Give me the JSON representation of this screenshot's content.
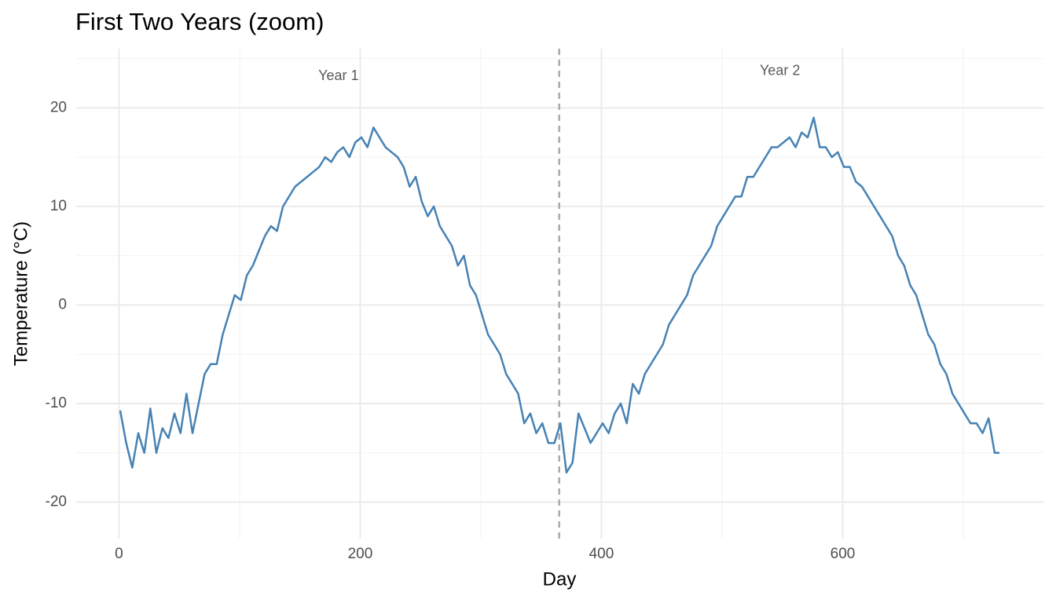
{
  "chart_data": {
    "type": "line",
    "title": "First Two Years (zoom)",
    "x_label": "Day",
    "y_label": "Temperature (°C)",
    "color": "#4682b4",
    "x": [
      1,
      6,
      11,
      16,
      21,
      26,
      31,
      36,
      41,
      46,
      51,
      56,
      61,
      66,
      71,
      76,
      81,
      86,
      91,
      96,
      101,
      106,
      111,
      116,
      121,
      126,
      131,
      136,
      141,
      146,
      151,
      156,
      161,
      166,
      171,
      176,
      181,
      186,
      191,
      196,
      201,
      206,
      211,
      216,
      221,
      226,
      231,
      236,
      241,
      246,
      251,
      256,
      261,
      266,
      271,
      276,
      281,
      286,
      291,
      296,
      301,
      306,
      311,
      316,
      321,
      326,
      331,
      336,
      341,
      346,
      351,
      356,
      361,
      366,
      371,
      376,
      381,
      386,
      391,
      396,
      401,
      406,
      411,
      416,
      421,
      426,
      431,
      436,
      441,
      446,
      451,
      456,
      461,
      466,
      471,
      476,
      481,
      486,
      491,
      496,
      501,
      506,
      511,
      516,
      521,
      526,
      531,
      536,
      541,
      546,
      551,
      556,
      561,
      566,
      571,
      576,
      581,
      586,
      591,
      596,
      601,
      606,
      611,
      616,
      621,
      626,
      631,
      636,
      641,
      646,
      651,
      656,
      661,
      666,
      671,
      676,
      681,
      686,
      691,
      696,
      701,
      706,
      711,
      716,
      721,
      726,
      730
    ],
    "values": [
      -10.7,
      -14,
      -16.5,
      -13,
      -15,
      -10.5,
      -15,
      -12.5,
      -13.5,
      -11,
      -13,
      -9,
      -13,
      -10,
      -7,
      -6,
      -6,
      -3,
      -1,
      1,
      0.5,
      3,
      4,
      5.5,
      7,
      8,
      7.5,
      10,
      11,
      12,
      12.5,
      13,
      13.5,
      14,
      15,
      14.5,
      15.5,
      16,
      15,
      16.5,
      17,
      16,
      18,
      17,
      16,
      15.5,
      15,
      14,
      12,
      13,
      10.5,
      9,
      10,
      8,
      7,
      6,
      4,
      5,
      2,
      1,
      -1,
      -3,
      -4,
      -5,
      -7,
      -8,
      -9,
      -12,
      -11,
      -13,
      -12,
      -14,
      -14,
      -12,
      -17,
      -16,
      -11,
      -12.5,
      -14,
      -13,
      -12,
      -13,
      -11,
      -10,
      -12,
      -8,
      -9,
      -7,
      -6,
      -5,
      -4,
      -2,
      -1,
      0,
      1,
      3,
      4,
      5,
      6,
      8,
      9,
      10,
      11,
      11,
      13,
      13,
      14,
      15,
      16,
      16,
      16.5,
      17,
      16,
      17.5,
      17,
      19,
      16,
      16,
      15,
      15.5,
      14,
      14,
      12.5,
      12,
      11,
      10,
      9,
      8,
      7,
      5,
      4,
      2,
      1,
      -1,
      -3,
      -4,
      -6,
      -7,
      -9,
      -10,
      -11,
      -12,
      -12,
      -13,
      -11.5,
      -15,
      -15
    ],
    "xlim": [
      -35.45,
      766.45
    ],
    "ylim": [
      -23.7,
      26
    ],
    "xticks": [
      0,
      200,
      400,
      600
    ],
    "yticks": [
      -20,
      -10,
      0,
      10,
      20
    ],
    "x_minor_grid": [
      100,
      300,
      500,
      700
    ],
    "y_minor_grid": [
      -15,
      -5,
      5,
      15,
      25
    ],
    "grid": true,
    "vline": 365,
    "annotations": [
      {
        "text": "Year 1",
        "x": 182,
        "y": 23.2
      },
      {
        "text": "Year 2",
        "x": 548,
        "y": 23.7
      }
    ]
  }
}
